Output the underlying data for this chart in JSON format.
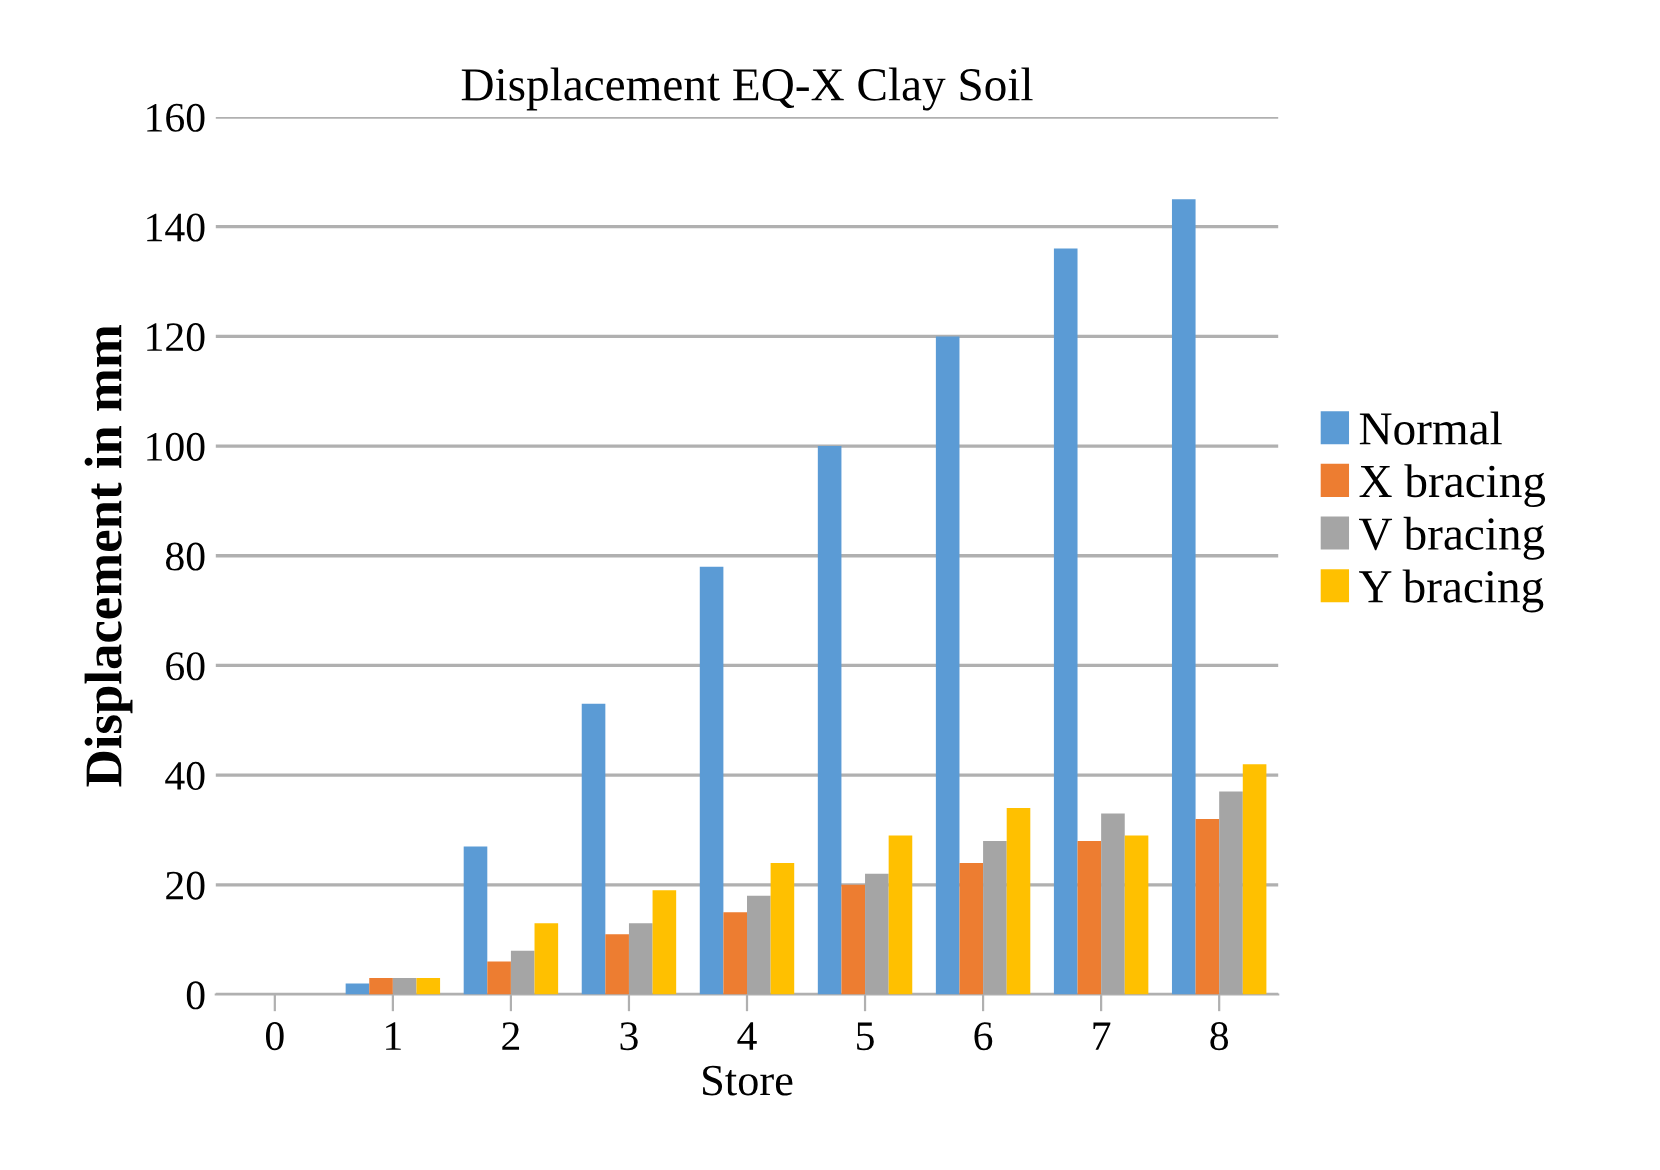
{
  "chart_data": {
    "type": "bar",
    "title": "Displacement EQ-X Clay Soil",
    "xlabel": "Store",
    "ylabel": "Displacement in mm",
    "categories": [
      "0",
      "1",
      "2",
      "3",
      "4",
      "5",
      "6",
      "7",
      "8"
    ],
    "series": [
      {
        "name": "Normal",
        "color": "#5b9bd5",
        "values": [
          0,
          2,
          27,
          53,
          78,
          100,
          120,
          136,
          145
        ]
      },
      {
        "name": "X bracing",
        "color": "#ed7d31",
        "values": [
          0,
          3,
          6,
          11,
          15,
          20,
          24,
          28,
          32
        ]
      },
      {
        "name": "V bracing",
        "color": "#a5a5a5",
        "values": [
          0,
          3,
          8,
          13,
          18,
          22,
          28,
          33,
          37
        ]
      },
      {
        "name": "Y bracing",
        "color": "#ffc000",
        "values": [
          0,
          3,
          13,
          19,
          24,
          29,
          34,
          29,
          42
        ]
      }
    ],
    "ylim": [
      0,
      160
    ],
    "yticks": [
      0,
      20,
      40,
      60,
      80,
      100,
      120,
      140,
      160
    ],
    "grid": "y",
    "legend": "right"
  }
}
